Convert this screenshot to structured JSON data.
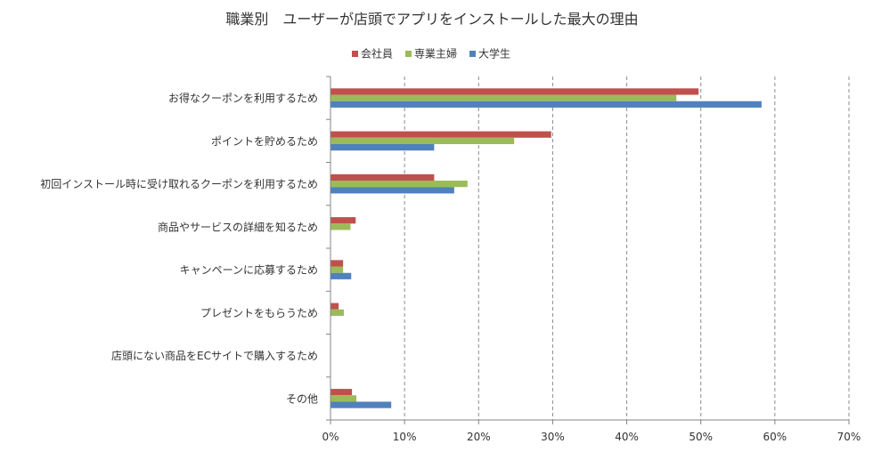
{
  "chart_data": {
    "type": "bar",
    "orientation": "horizontal",
    "title": "職業別　ユーザーが店頭でアプリをインストールした最大の理由",
    "categories": [
      "お得なクーポンを利用するため",
      "ポイントを貯めるため",
      "初回インストール時に受け取れるクーポンを利用するため",
      "商品やサービスの詳細を知るため",
      "キャンペーンに応募するため",
      "プレゼントをもらうため",
      "店頭にない商品をECサイトで購入するため",
      "その他"
    ],
    "series": [
      {
        "name": "会社員",
        "color": "#c0504d",
        "values": [
          49.7,
          29.8,
          14.0,
          3.4,
          1.7,
          1.1,
          0.0,
          2.9
        ]
      },
      {
        "name": "専業主婦",
        "color": "#9bbb59",
        "values": [
          46.7,
          24.8,
          18.5,
          2.7,
          1.7,
          1.8,
          0.0,
          3.5
        ]
      },
      {
        "name": "大学生",
        "color": "#4f81bd",
        "values": [
          58.2,
          14.0,
          16.7,
          0.0,
          2.8,
          0.0,
          0.0,
          8.2
        ]
      }
    ],
    "xlim": [
      0,
      70
    ],
    "x_ticks": [
      0,
      10,
      20,
      30,
      40,
      50,
      60,
      70
    ],
    "tick_suffix": "%",
    "grid": "vertical dashed",
    "legend_position": "top"
  }
}
